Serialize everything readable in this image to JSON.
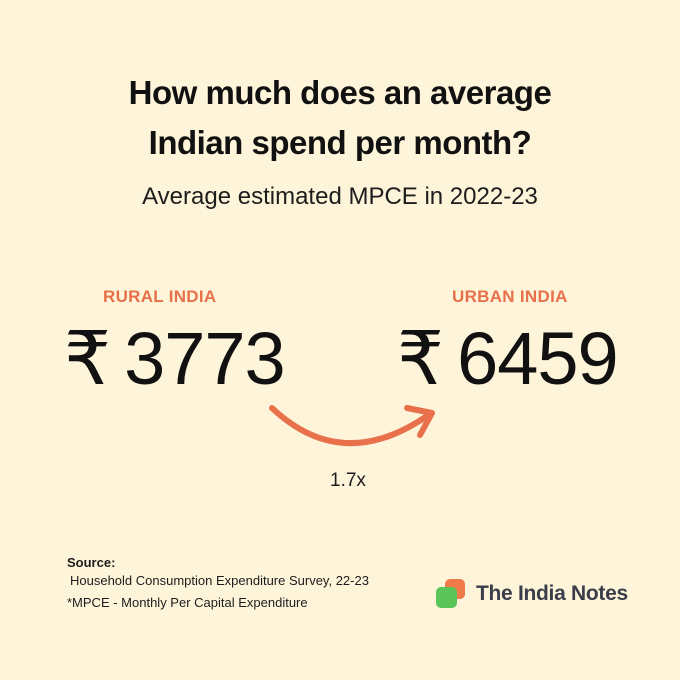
{
  "title": {
    "line1": "How much does an average",
    "line2": "Indian spend per month?"
  },
  "subtitle": "Average estimated MPCE in 2022-23",
  "rural": {
    "label": "RURAL INDIA",
    "currency": "₹",
    "value": "3773"
  },
  "urban": {
    "label": "URBAN INDIA",
    "currency": "₹",
    "value": "6459"
  },
  "multiplier": "1.7x",
  "source": {
    "heading": "Source:",
    "text": "Household Consumption Expenditure Survey, 22-23",
    "note": "*MPCE - Monthly Per Capital Expenditure"
  },
  "brand": {
    "name": "The India Notes",
    "logo_icon": "stacked-squares-logo-icon"
  },
  "colors": {
    "background": "#fdf4d9",
    "accent": "#e8704a",
    "logo_green": "#5cc55a",
    "logo_orange": "#ef7a4a",
    "text": "#111111"
  }
}
